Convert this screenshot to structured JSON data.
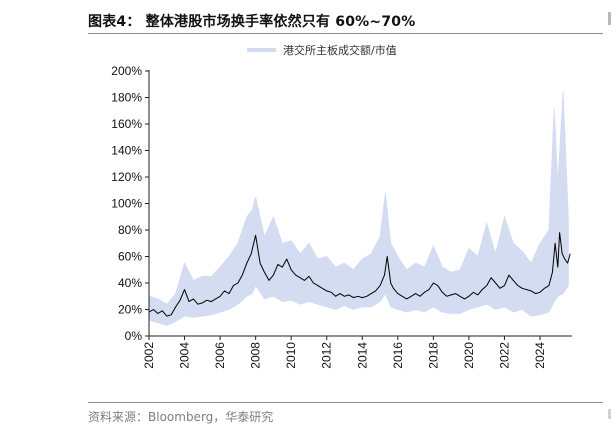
{
  "header": {
    "title": "图表4： 整体港股市场换手率依然只有 60%~70%"
  },
  "footer": {
    "source": "资料来源：Bloomberg，华泰研究"
  },
  "colors": {
    "band": "#d3dcf0",
    "line": "#000000",
    "axis": "#222222",
    "title_rule": "#8c8c8c"
  },
  "chart_data": {
    "type": "line",
    "title": "整体港股市场换手率依然只有 60%~70%",
    "xlabel": "",
    "ylabel": "",
    "ylim": [
      0,
      200
    ],
    "xlim": [
      2002,
      2025.8
    ],
    "y_unit": "%",
    "y_ticks": [
      0,
      20,
      40,
      60,
      80,
      100,
      120,
      140,
      160,
      180,
      200
    ],
    "y_tick_labels": [
      "0%",
      "20%",
      "40%",
      "60%",
      "80%",
      "100%",
      "120%",
      "140%",
      "160%",
      "180%",
      "200%"
    ],
    "x_ticks": [
      2002,
      2004,
      2006,
      2008,
      2010,
      2012,
      2014,
      2016,
      2018,
      2020,
      2022,
      2024
    ],
    "x_tick_labels": [
      "2002",
      "2004",
      "2006",
      "2008",
      "2010",
      "2012",
      "2014",
      "2016",
      "2018",
      "2020",
      "2022",
      "2024"
    ],
    "grid": false,
    "legend": {
      "position": "top-center",
      "entries": [
        "港交所主板成交额/市值"
      ]
    },
    "series": [
      {
        "name": "港交所主板成交额/市值",
        "style": "band",
        "x": [
          2002.0,
          2002.5,
          2003.0,
          2003.5,
          2004.0,
          2004.5,
          2005.0,
          2005.5,
          2006.0,
          2006.5,
          2007.0,
          2007.5,
          2007.8,
          2008.0,
          2008.5,
          2009.0,
          2009.5,
          2010.0,
          2010.5,
          2011.0,
          2011.5,
          2012.0,
          2012.5,
          2013.0,
          2013.5,
          2014.0,
          2014.5,
          2015.0,
          2015.3,
          2015.6,
          2016.0,
          2016.5,
          2017.0,
          2017.5,
          2018.0,
          2018.5,
          2019.0,
          2019.5,
          2020.0,
          2020.5,
          2021.0,
          2021.5,
          2022.0,
          2022.5,
          2023.0,
          2023.5,
          2024.0,
          2024.5,
          2024.8,
          2025.0,
          2025.3,
          2025.6
        ],
        "low": [
          12,
          10,
          8,
          11,
          15,
          14,
          15,
          16,
          18,
          20,
          24,
          30,
          32,
          38,
          28,
          30,
          26,
          27,
          24,
          26,
          24,
          22,
          20,
          23,
          20,
          22,
          22,
          26,
          32,
          22,
          20,
          18,
          20,
          18,
          22,
          18,
          17,
          17,
          20,
          22,
          24,
          20,
          22,
          18,
          20,
          15,
          16,
          18,
          26,
          30,
          32,
          38
        ],
        "high": [
          30,
          28,
          24,
          32,
          55,
          42,
          45,
          45,
          52,
          60,
          70,
          90,
          95,
          105,
          75,
          90,
          70,
          72,
          62,
          70,
          58,
          60,
          52,
          55,
          50,
          58,
          62,
          75,
          108,
          70,
          60,
          50,
          55,
          52,
          68,
          52,
          48,
          50,
          66,
          60,
          85,
          62,
          90,
          70,
          64,
          55,
          70,
          80,
          172,
          115,
          185,
          88
        ]
      },
      {
        "name": "",
        "style": "line",
        "x": [
          2002.0,
          2002.25,
          2002.5,
          2002.75,
          2003.0,
          2003.25,
          2003.5,
          2003.75,
          2004.0,
          2004.25,
          2004.5,
          2004.75,
          2005.0,
          2005.25,
          2005.5,
          2005.75,
          2006.0,
          2006.25,
          2006.5,
          2006.75,
          2007.0,
          2007.25,
          2007.5,
          2007.75,
          2008.0,
          2008.25,
          2008.5,
          2008.75,
          2009.0,
          2009.25,
          2009.5,
          2009.75,
          2010.0,
          2010.25,
          2010.5,
          2010.75,
          2011.0,
          2011.25,
          2011.5,
          2011.75,
          2012.0,
          2012.25,
          2012.5,
          2012.75,
          2013.0,
          2013.25,
          2013.5,
          2013.75,
          2014.0,
          2014.25,
          2014.5,
          2014.75,
          2015.0,
          2015.25,
          2015.4,
          2015.6,
          2015.75,
          2016.0,
          2016.25,
          2016.5,
          2016.75,
          2017.0,
          2017.25,
          2017.5,
          2017.75,
          2018.0,
          2018.25,
          2018.5,
          2018.75,
          2019.0,
          2019.25,
          2019.5,
          2019.75,
          2020.0,
          2020.25,
          2020.5,
          2020.75,
          2021.0,
          2021.25,
          2021.5,
          2021.75,
          2022.0,
          2022.25,
          2022.5,
          2022.75,
          2023.0,
          2023.25,
          2023.5,
          2023.75,
          2024.0,
          2024.25,
          2024.5,
          2024.7,
          2024.85,
          2025.0,
          2025.1,
          2025.25,
          2025.4,
          2025.55,
          2025.7
        ],
        "y": [
          18,
          20,
          17,
          19,
          15,
          16,
          22,
          27,
          35,
          26,
          28,
          24,
          25,
          27,
          26,
          28,
          30,
          34,
          32,
          38,
          40,
          46,
          55,
          62,
          76,
          55,
          48,
          42,
          46,
          54,
          52,
          58,
          50,
          46,
          44,
          42,
          45,
          40,
          38,
          36,
          34,
          33,
          30,
          32,
          30,
          31,
          29,
          30,
          29,
          30,
          32,
          34,
          38,
          46,
          60,
          40,
          36,
          32,
          30,
          28,
          30,
          32,
          30,
          33,
          35,
          40,
          38,
          33,
          30,
          31,
          32,
          30,
          28,
          30,
          33,
          31,
          35,
          38,
          44,
          40,
          36,
          38,
          46,
          42,
          38,
          36,
          35,
          34,
          32,
          33,
          36,
          38,
          48,
          70,
          52,
          78,
          62,
          58,
          55,
          62
        ]
      }
    ]
  }
}
